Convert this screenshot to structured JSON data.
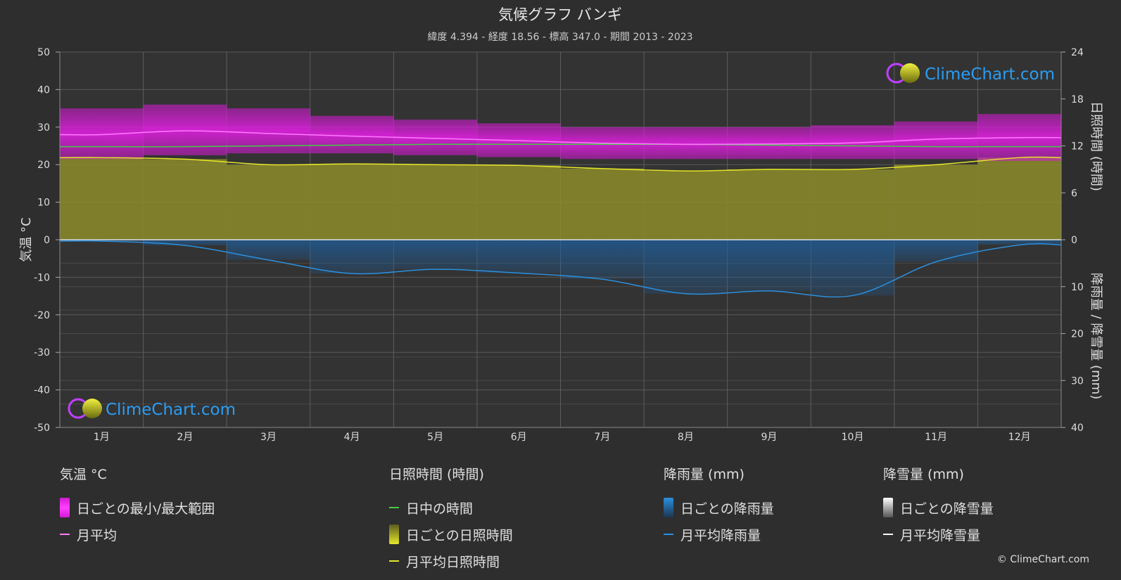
{
  "chart_data": {
    "type": "area",
    "title": "気候グラフ バンギ",
    "subtitle": "緯度 4.394 - 経度 18.56 - 標高 347.0 - 期間 2013 - 2023",
    "categories": [
      "1月",
      "2月",
      "3月",
      "4月",
      "5月",
      "6月",
      "7月",
      "8月",
      "9月",
      "10月",
      "11月",
      "12月"
    ],
    "left_axis": {
      "label": "気温 °C",
      "range": [
        -50,
        50
      ],
      "ticks": [
        50,
        40,
        30,
        20,
        10,
        0,
        -10,
        -20,
        -30,
        -40,
        -50
      ]
    },
    "right_axis_top": {
      "label": "日照時間 (時間)",
      "range": [
        0,
        24
      ],
      "ticks": [
        24,
        18,
        12,
        6,
        0
      ]
    },
    "right_axis_bottom": {
      "label": "降雨量 / 降雪量 (mm)",
      "range": [
        0,
        40
      ],
      "ticks": [
        10,
        20,
        30,
        40
      ]
    },
    "series": [
      {
        "name": "日ごとの最小/最大範囲",
        "axis": "temperature",
        "min": [
          21.5,
          22.5,
          23.0,
          23.0,
          22.5,
          22.0,
          21.5,
          21.5,
          21.5,
          21.5,
          21.5,
          21.0
        ],
        "max": [
          35.0,
          36.0,
          35.0,
          33.0,
          32.0,
          31.0,
          30.0,
          30.0,
          30.0,
          30.5,
          31.5,
          33.5
        ]
      },
      {
        "name": "月平均",
        "axis": "temperature",
        "values": [
          28.0,
          29.0,
          28.3,
          27.6,
          27.0,
          26.4,
          25.7,
          25.4,
          25.5,
          25.8,
          26.8,
          27.2
        ]
      },
      {
        "name": "日中の時間",
        "axis": "sunshine",
        "values": [
          11.9,
          11.9,
          12.0,
          12.1,
          12.2,
          12.2,
          12.2,
          12.2,
          12.1,
          12.0,
          11.9,
          11.9
        ]
      },
      {
        "name": "日ごとの日照時間",
        "axis": "sunshine",
        "values": [
          10.5,
          10.3,
          9.6,
          9.7,
          9.6,
          9.5,
          9.1,
          8.8,
          9.0,
          9.0,
          9.6,
          10.5
        ]
      },
      {
        "name": "月平均日照時間",
        "axis": "sunshine",
        "values": [
          10.5,
          10.3,
          9.6,
          9.7,
          9.6,
          9.5,
          9.1,
          8.8,
          9.0,
          9.0,
          9.6,
          10.5
        ]
      },
      {
        "name": "日ごとの降雨量",
        "axis": "precipitation",
        "values": [
          0.3,
          1.2,
          4.3,
          7.2,
          6.3,
          7.1,
          8.4,
          11.5,
          10.9,
          11.9,
          4.7,
          1.1
        ]
      },
      {
        "name": "月平均降雨量",
        "axis": "precipitation",
        "values": [
          0.3,
          1.2,
          4.3,
          7.2,
          6.3,
          7.1,
          8.4,
          11.5,
          10.9,
          11.9,
          4.7,
          1.1
        ]
      },
      {
        "name": "日ごとの降雪量",
        "axis": "precipitation",
        "values": [
          0,
          0,
          0,
          0,
          0,
          0,
          0,
          0,
          0,
          0,
          0,
          0
        ]
      },
      {
        "name": "月平均降雪量",
        "axis": "precipitation",
        "values": [
          0,
          0,
          0,
          0,
          0,
          0,
          0,
          0,
          0,
          0,
          0,
          0
        ]
      }
    ],
    "colors": {
      "temp_range": "#d21ad2",
      "temp_avg": "#ff7aff",
      "daylight": "#44cc44",
      "sunshine_fill": "#8c8c2a",
      "sunshine_avg": "#e6e62a",
      "rain_fill": "#1e5f9e",
      "rain_avg": "#2a90e0",
      "snow": "#ffffff"
    }
  },
  "logo_text": "ClimeChart.com",
  "legend": {
    "temperature": {
      "title": "気温 °C",
      "range": "日ごとの最小/最大範囲",
      "avg": "月平均"
    },
    "sunshine": {
      "title": "日照時間 (時間)",
      "daylight": "日中の時間",
      "daily": "日ごとの日照時間",
      "avg": "月平均日照時間"
    },
    "rain": {
      "title": "降雨量 (mm)",
      "daily": "日ごとの降雨量",
      "avg": "月平均降雨量"
    },
    "snow": {
      "title": "降雪量 (mm)",
      "daily": "日ごとの降雪量",
      "avg": "月平均降雪量"
    }
  },
  "copyright": "© ClimeChart.com"
}
